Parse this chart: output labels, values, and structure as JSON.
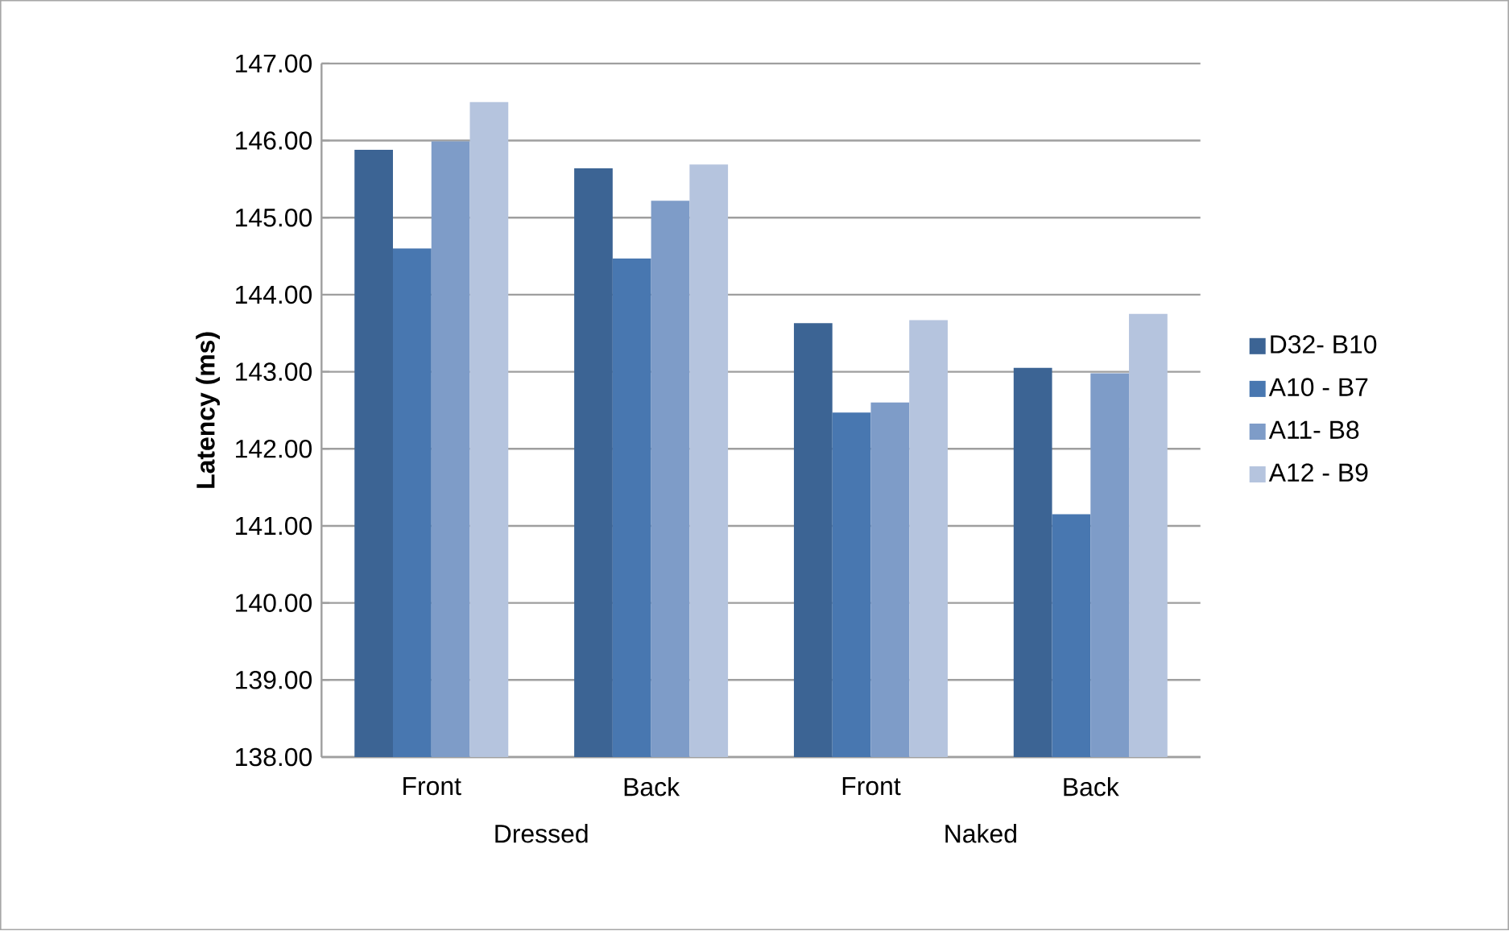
{
  "chart_data": {
    "type": "bar",
    "ylabel": "Latency (ms)",
    "categories": [
      "Front",
      "Back",
      "Front",
      "Back"
    ],
    "series": [
      {
        "name": "D32- B10",
        "color": "#3c6494",
        "values": [
          145.88,
          145.64,
          143.63,
          143.05
        ]
      },
      {
        "name": "A10 - B7",
        "color": "#4877b0",
        "values": [
          144.6,
          144.47,
          142.47,
          141.15
        ]
      },
      {
        "name": "A11- B8",
        "color": "#7e9cc8",
        "values": [
          145.99,
          145.22,
          142.6,
          142.98
        ]
      },
      {
        "name": "A12 - B9",
        "color": "#b5c4de",
        "values": [
          146.5,
          145.69,
          143.67,
          143.75
        ]
      }
    ],
    "ylim": [
      138,
      147
    ],
    "yticks": [
      {
        "value": 138,
        "label": "138.00"
      },
      {
        "value": 139,
        "label": "139.00"
      },
      {
        "value": 140,
        "label": "140.00"
      },
      {
        "value": 141,
        "label": "141.00"
      },
      {
        "value": 142,
        "label": "142.00"
      },
      {
        "value": 143,
        "label": "143.00"
      },
      {
        "value": 144,
        "label": "144.00"
      },
      {
        "value": 145,
        "label": "145.00"
      },
      {
        "value": 146,
        "label": "146.00"
      },
      {
        "value": 147,
        "label": "147.00"
      }
    ],
    "grid": "y",
    "legend": "right",
    "annotations": [
      "Dressed",
      "Naked"
    ]
  }
}
